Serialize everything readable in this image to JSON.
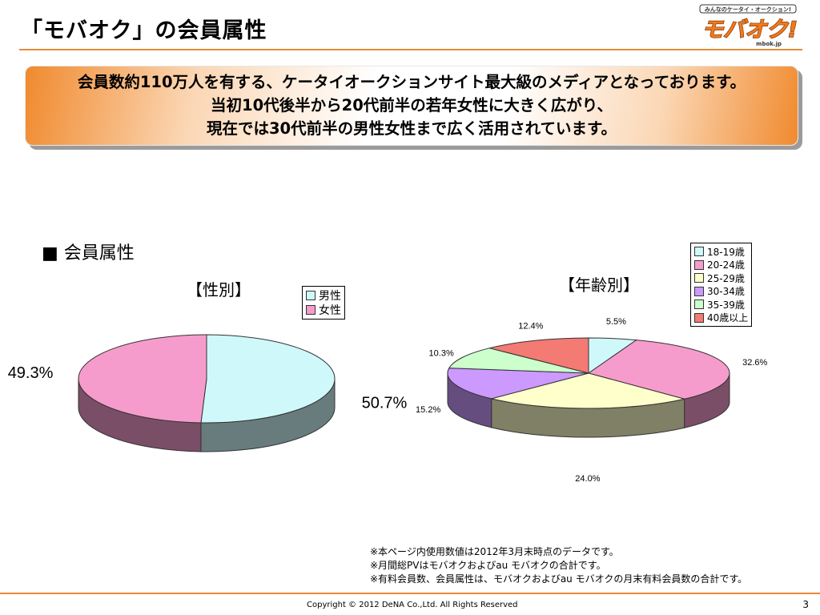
{
  "header": {
    "title": "「モバオク」の会員属性"
  },
  "logo": {
    "tagline": "みんなのケータイ・オークション!",
    "brand": "モバオク!",
    "url": "mbok.jp"
  },
  "banner": {
    "lines": [
      "会員数約110万人を有する、ケータイオークションサイト最大級のメディアとなっております。",
      "当初10代後半から20代前半の若年女性に大きく広がり、",
      "現在では30代前半の男性女性まで広く活用されています。"
    ]
  },
  "section": {
    "title": "■ 会員属性"
  },
  "chart_data": [
    {
      "type": "pie",
      "title": "【性別】",
      "categories": [
        "男性",
        "女性"
      ],
      "values": [
        50.7,
        49.3
      ],
      "labels": [
        "50.7%",
        "49.3%"
      ],
      "colors": [
        "#cff8fb",
        "#f69ccd"
      ],
      "legend": "top-right"
    },
    {
      "type": "pie",
      "title": "【年齢別】",
      "categories": [
        "18-19歳",
        "20-24歳",
        "25-29歳",
        "30-34歳",
        "35-39歳",
        "40歳以上"
      ],
      "values": [
        5.5,
        32.6,
        24.0,
        15.2,
        10.3,
        12.4
      ],
      "labels": [
        "5.5%",
        "32.6%",
        "24.0%",
        "15.2%",
        "10.3%",
        "12.4%"
      ],
      "colors": [
        "#cff8fb",
        "#f69ccd",
        "#ffffcc",
        "#cc99ff",
        "#ccffcc",
        "#f47a74"
      ],
      "legend": "top-right"
    }
  ],
  "notes": [
    "※本ページ内使用数値は2012年3月末時点のデータです。",
    "※月間総PVはモバオクおよびau モバオクの合計です。",
    "※有料会員数、会員属性は、モバオクおよびau モバオクの月末有料会員数の合計です。"
  ],
  "footer": {
    "copyright": "Copyright © 2012 DeNA Co.,Ltd. All Rights Reserved",
    "page": "3"
  }
}
